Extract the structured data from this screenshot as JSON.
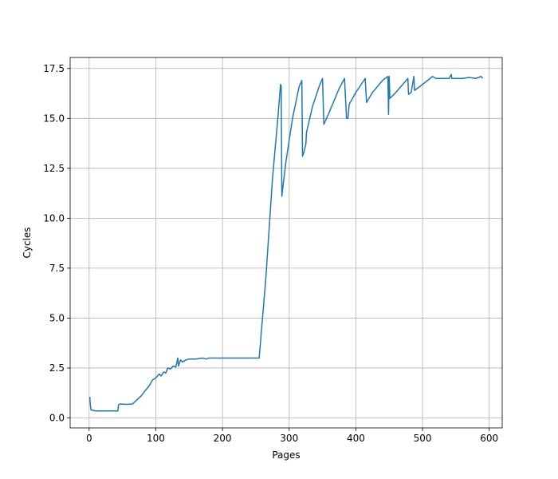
{
  "chart_data": {
    "type": "line",
    "xlabel": "Pages",
    "ylabel": "Cycles",
    "grid": true,
    "xlim": [
      -28.45,
      619.45
    ],
    "ylim": [
      -0.5,
      18.05
    ],
    "xticks": [
      0,
      100,
      200,
      300,
      400,
      500,
      600
    ],
    "yticks": [
      {
        "value": 0,
        "label": "0.0"
      },
      2.5,
      {
        "value": 5,
        "label": "5.0"
      },
      7.5,
      {
        "value": 10,
        "label": "10.0"
      },
      12.5,
      {
        "value": 15,
        "label": "15.0"
      },
      17.5
    ],
    "series": [
      {
        "color": "#1f77b4",
        "x": [
          1,
          2,
          3,
          10,
          30,
          43,
          44,
          47,
          55,
          65,
          70,
          78,
          85,
          90,
          95,
          100,
          105,
          108,
          112,
          115,
          118,
          122,
          126,
          130,
          133,
          134,
          137,
          140,
          145,
          150,
          160,
          170,
          175,
          180,
          200,
          230,
          255,
          265,
          275,
          283,
          287,
          288,
          289,
          295,
          305,
          315,
          319,
          320,
          322,
          325,
          326,
          335,
          345,
          350,
          352,
          360,
          375,
          383,
          386,
          388,
          390,
          400,
          414,
          416,
          425,
          440,
          448,
          449,
          450,
          451,
          460,
          478,
          479,
          483,
          487,
          488,
          500,
          515,
          520,
          540,
          543,
          544,
          560,
          570,
          580,
          588,
          590
        ],
        "values": [
          1.05,
          0.6,
          0.4,
          0.35,
          0.35,
          0.35,
          0.65,
          0.7,
          0.68,
          0.7,
          0.85,
          1.1,
          1.4,
          1.6,
          1.9,
          2.0,
          2.2,
          2.1,
          2.3,
          2.25,
          2.5,
          2.45,
          2.6,
          2.55,
          3.0,
          2.6,
          2.9,
          2.8,
          2.9,
          2.95,
          2.95,
          3.0,
          2.95,
          3.0,
          3.0,
          3.0,
          3.0,
          7.0,
          12.0,
          15.0,
          16.7,
          16.6,
          11.1,
          12.8,
          15.0,
          16.6,
          16.9,
          13.1,
          13.3,
          13.7,
          14.3,
          15.6,
          16.6,
          17.0,
          14.7,
          15.3,
          16.5,
          17.0,
          15.0,
          15.0,
          15.7,
          16.3,
          17.0,
          15.8,
          16.3,
          16.9,
          17.1,
          15.2,
          17.1,
          16.0,
          16.3,
          17.0,
          16.2,
          16.3,
          17.1,
          16.4,
          16.7,
          17.1,
          17.0,
          17.0,
          17.2,
          17.0,
          17.0,
          17.05,
          17.0,
          17.1,
          17.0
        ]
      }
    ]
  }
}
